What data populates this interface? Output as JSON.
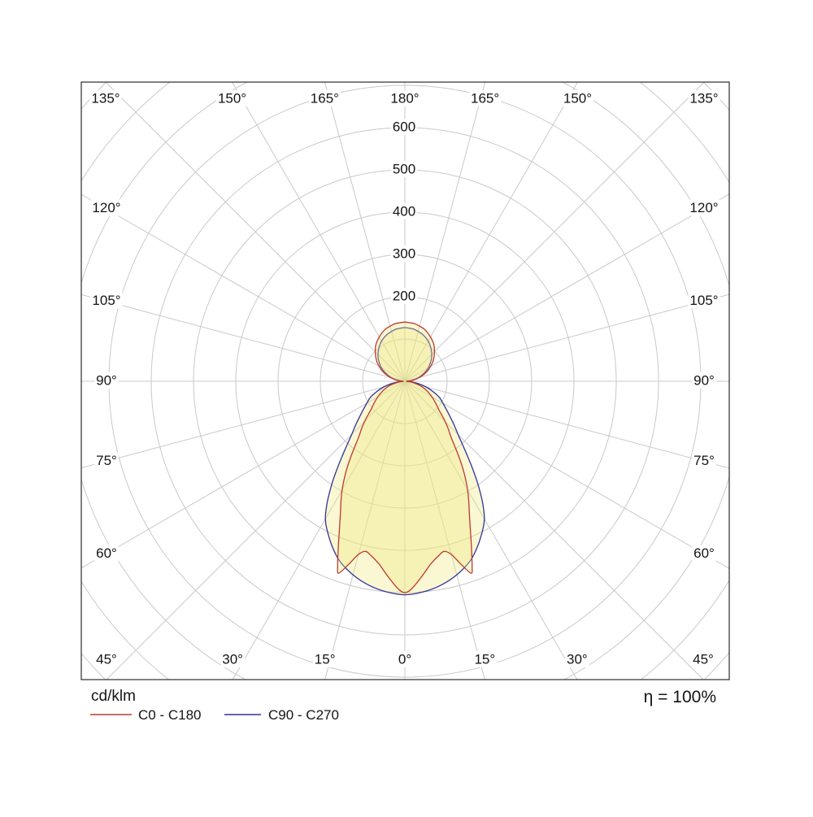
{
  "chart_data": {
    "type": "polar-photometric",
    "units_label": "cd/klm",
    "efficiency": "η = 100%",
    "angle_label_suffix": "°",
    "angle_tick_labels_deg": [
      0,
      15,
      30,
      45,
      60,
      75,
      90,
      105,
      120,
      135,
      150,
      165,
      180
    ],
    "radial_tick_values": [
      200,
      300,
      400,
      500,
      600
    ],
    "radial_grid_step_cd": 100,
    "radial_grid_max_cd": 1000,
    "grid": true,
    "symmetric_mirror": true,
    "orientation_note": "0 deg at nadir (bottom), 180 deg at zenith (top), mirrored left/right",
    "legend_position": "bottom-left",
    "fill_color": "#f0e878",
    "fill_opacity": 0.33,
    "series": [
      {
        "name": "C0 - C180",
        "color": "#bb3a2e",
        "points_deg_cd": [
          [
            0,
            500
          ],
          [
            2,
            490
          ],
          [
            5,
            463
          ],
          [
            8,
            437
          ],
          [
            11,
            420
          ],
          [
            13,
            413
          ],
          [
            15,
            424
          ],
          [
            17,
            452
          ],
          [
            19,
            480
          ],
          [
            20,
            465
          ],
          [
            22,
            420
          ],
          [
            24,
            380
          ],
          [
            26,
            348
          ],
          [
            28,
            322
          ],
          [
            30,
            297
          ],
          [
            32,
            270
          ],
          [
            34,
            242
          ],
          [
            36,
            214
          ],
          [
            38,
            188
          ],
          [
            40,
            168
          ],
          [
            43,
            148
          ],
          [
            46,
            128
          ],
          [
            50,
            105
          ],
          [
            55,
            88
          ],
          [
            60,
            74
          ],
          [
            65,
            61
          ],
          [
            70,
            48
          ],
          [
            75,
            35
          ],
          [
            80,
            22
          ],
          [
            85,
            11
          ],
          [
            90,
            4
          ],
          [
            95,
            13
          ],
          [
            100,
            25
          ],
          [
            105,
            37
          ],
          [
            110,
            48
          ],
          [
            115,
            60
          ],
          [
            120,
            70
          ],
          [
            125,
            81
          ],
          [
            130,
            90
          ],
          [
            135,
            99
          ],
          [
            140,
            108
          ],
          [
            145,
            115
          ],
          [
            150,
            121
          ],
          [
            155,
            127
          ],
          [
            160,
            132
          ],
          [
            165,
            135
          ],
          [
            170,
            138
          ],
          [
            175,
            139
          ],
          [
            180,
            140
          ]
        ]
      },
      {
        "name": "C90 - C270",
        "color": "#32329b",
        "points_deg_cd": [
          [
            0,
            505
          ],
          [
            5,
            500
          ],
          [
            10,
            490
          ],
          [
            15,
            474
          ],
          [
            20,
            452
          ],
          [
            24,
            425
          ],
          [
            28,
            394
          ],
          [
            30,
            376
          ],
          [
            32,
            350
          ],
          [
            34,
            320
          ],
          [
            36,
            289
          ],
          [
            38,
            258
          ],
          [
            40,
            230
          ],
          [
            42,
            206
          ],
          [
            45,
            178
          ],
          [
            48,
            158
          ],
          [
            50,
            146
          ],
          [
            55,
            122
          ],
          [
            60,
            104
          ],
          [
            65,
            90
          ],
          [
            70,
            70
          ],
          [
            75,
            52
          ],
          [
            80,
            33
          ],
          [
            85,
            16
          ],
          [
            90,
            4
          ],
          [
            95,
            11
          ],
          [
            100,
            22
          ],
          [
            105,
            33
          ],
          [
            110,
            43
          ],
          [
            115,
            54
          ],
          [
            120,
            64
          ],
          [
            125,
            73
          ],
          [
            130,
            82
          ],
          [
            135,
            90
          ],
          [
            140,
            97
          ],
          [
            145,
            104
          ],
          [
            150,
            110
          ],
          [
            155,
            115
          ],
          [
            160,
            119
          ],
          [
            165,
            122
          ],
          [
            170,
            125
          ],
          [
            175,
            126
          ],
          [
            180,
            127
          ]
        ]
      }
    ]
  },
  "colors": {
    "grid": "#c9c9c9",
    "border": "#2b2b2b",
    "text": "#141414",
    "background": "#ffffff"
  }
}
